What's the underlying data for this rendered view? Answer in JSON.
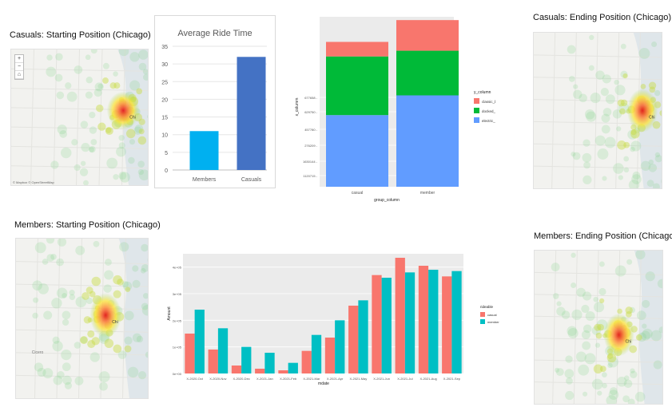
{
  "panels": {
    "casual_start": {
      "title": "Casuals: Starting Position (Chicago)",
      "map_label": "Chi",
      "attribution": "© Mapbox © OpenStreetMap"
    },
    "casual_end": {
      "title": "Casuals: Ending Position (Chicago)",
      "map_label": "Chi"
    },
    "member_start": {
      "title": "Members: Starting Position (Chicago)",
      "map_label": "Chi",
      "place_label": "Cicero"
    },
    "member_end": {
      "title": "Members: Ending Position (Chicago)",
      "map_label": "Chi"
    }
  },
  "map_controls": {
    "zoom_in": "+",
    "zoom_out": "−",
    "home": "⌂"
  },
  "colors": {
    "casual": "#f8766d",
    "member": "#00bfc4",
    "classic": "#f8766d",
    "docked": "#00ba38",
    "electric": "#619cff",
    "bar_members": "#00b0f0",
    "bar_casuals": "#4472c4"
  },
  "chart_data": [
    {
      "id": "avg_ride_time",
      "type": "bar",
      "title": "Average Ride Time",
      "categories": [
        "Members",
        "Casuals"
      ],
      "values": [
        11,
        32
      ],
      "ylim": [
        0,
        35
      ],
      "yticks": [
        0,
        5,
        10,
        15,
        20,
        25,
        30,
        35
      ],
      "grid": true
    },
    {
      "id": "rideable_type",
      "type": "bar",
      "stacked": true,
      "xlabel": "group_column",
      "ylabel": "x_columm",
      "categories": [
        "casual",
        "member"
      ],
      "legend_title": "y_column",
      "legend_position": "right",
      "series": [
        {
          "name": "electric_bike",
          "values": [
            1380000,
            1760000
          ]
        },
        {
          "name": "docked_bike",
          "values": [
            1130000,
            860000
          ]
        },
        {
          "name": "classic_bike",
          "values": [
            280000,
            590000
          ]
        }
      ],
      "yticks": [
        "1120715 -",
        "1630144 -",
        "276209 -",
        "457780 -",
        "629750 -",
        "677658 -"
      ]
    },
    {
      "id": "monthly_rides",
      "type": "bar",
      "xlabel": "mdate",
      "ylabel": "Amount",
      "legend_title": "rideable",
      "legend_position": "right",
      "categories": [
        "X-2020-Oct",
        "X-2020-Nov",
        "X-2020-Dec",
        "X-2021-Jan",
        "X-2021-Feb",
        "X-2021-Mar",
        "X-2021-Apr",
        "X-2021-May",
        "X-2021-Jun",
        "X-2021-Jul",
        "X-2021-Aug",
        "X-2021-Sep"
      ],
      "series": [
        {
          "name": "casual",
          "values": [
            150000,
            90000,
            30000,
            18000,
            12000,
            85000,
            135000,
            255000,
            370000,
            435000,
            405000,
            365000
          ]
        },
        {
          "name": "member",
          "values": [
            240000,
            170000,
            100000,
            78000,
            40000,
            145000,
            200000,
            275000,
            360000,
            380000,
            390000,
            385000
          ]
        }
      ],
      "ylim": [
        0,
        450000
      ],
      "yticks": [
        "0e+00",
        "1e+05",
        "2e+05",
        "3e+05",
        "4e+05"
      ],
      "grid": true
    }
  ]
}
